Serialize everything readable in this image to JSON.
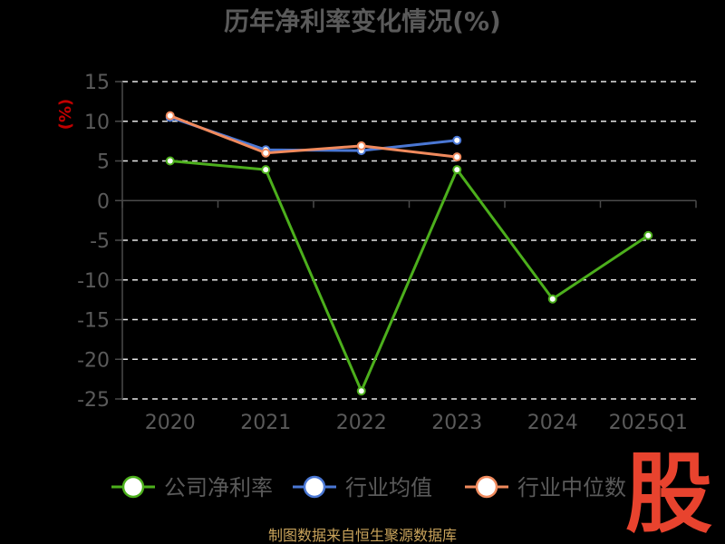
{
  "chart_data": {
    "type": "line",
    "title": "历年净利率变化情况(%)",
    "ylabel": "(%)",
    "categories": [
      "2020",
      "2021",
      "2022",
      "2023",
      "2024",
      "2025Q1"
    ],
    "ylim": [
      -25,
      15
    ],
    "yticks": [
      15,
      10,
      5,
      0,
      -5,
      -10,
      -15,
      -20,
      -25
    ],
    "grid": true,
    "legend_position": "bottom",
    "series": [
      {
        "name": "公司净利率",
        "color": "#4caf1c",
        "values": [
          5.0,
          3.9,
          -24.0,
          3.9,
          -12.4,
          -4.4
        ]
      },
      {
        "name": "行业均值",
        "color": "#4a77d4",
        "values": [
          10.5,
          6.4,
          6.3,
          7.6,
          null,
          null
        ]
      },
      {
        "name": "行业中位数",
        "color": "#f08a5d",
        "values": [
          10.7,
          6.0,
          6.9,
          5.5,
          null,
          null
        ]
      }
    ]
  },
  "footer": {
    "source": "制图数据来自恒生聚源数据库"
  },
  "logo": {
    "text": "股"
  }
}
